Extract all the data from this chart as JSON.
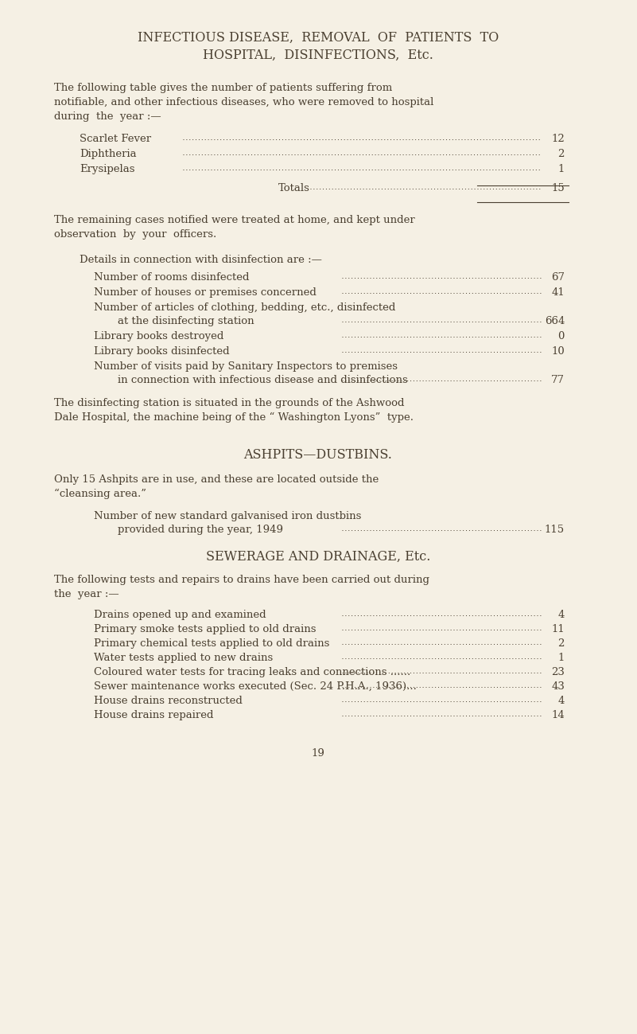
{
  "bg_color": "#f5f0e4",
  "text_color": "#4a3f30",
  "page_width": 8.01,
  "page_height": 12.99,
  "title_line1": "INFECTIOUS DISEASE,  REMOVAL  OF  PATIENTS  TO",
  "title_line2": "HOSPITAL,  DISINFECTIONS,  Etc.",
  "disease_items": [
    [
      "Scarlet Fever",
      "12"
    ],
    [
      "Diphtheria",
      "2"
    ],
    [
      "Erysipelas",
      "1"
    ]
  ],
  "totals_label": "Totals",
  "totals_value": "15",
  "details_intro": "Details in connection with disinfection are :—",
  "disinfection_items": [
    [
      "Number of rooms disinfected",
      "",
      "67"
    ],
    [
      "Number of houses or premises concerned",
      "",
      "41"
    ],
    [
      "Number of articles of clothing, bedding, etc., disinfected",
      "at the disinfecting station",
      "664"
    ],
    [
      "Library books destroyed",
      "",
      "0"
    ],
    [
      "Library books disinfected",
      "",
      "10"
    ],
    [
      "Number of visits paid by Sanitary Inspectors to premises",
      "in connection with infectious disease and disinfections",
      "77"
    ]
  ],
  "section2_title": "ASHPITS—DUSTBINS.",
  "dustbins_label1": "Number of new standard galvanised iron dustbins",
  "dustbins_label2": "provided during the year, 1949",
  "dustbins_value": "115",
  "section3_title": "SEWERAGE AND DRAINAGE, Etc.",
  "drainage_items": [
    [
      "Drains opened up and examined",
      "4"
    ],
    [
      "Primary smoke tests applied to old drains",
      "11"
    ],
    [
      "Primary chemical tests applied to old drains",
      "2"
    ],
    [
      "Water tests applied to new drains",
      "1"
    ],
    [
      "Coloured water tests for tracing leaks and connections ......",
      "23"
    ],
    [
      "Sewer maintenance works executed (Sec. 24 P.H.A., 1936)...",
      "43"
    ],
    [
      "House drains reconstructed",
      "4"
    ],
    [
      "House drains repaired",
      "14"
    ]
  ],
  "page_number": "19"
}
